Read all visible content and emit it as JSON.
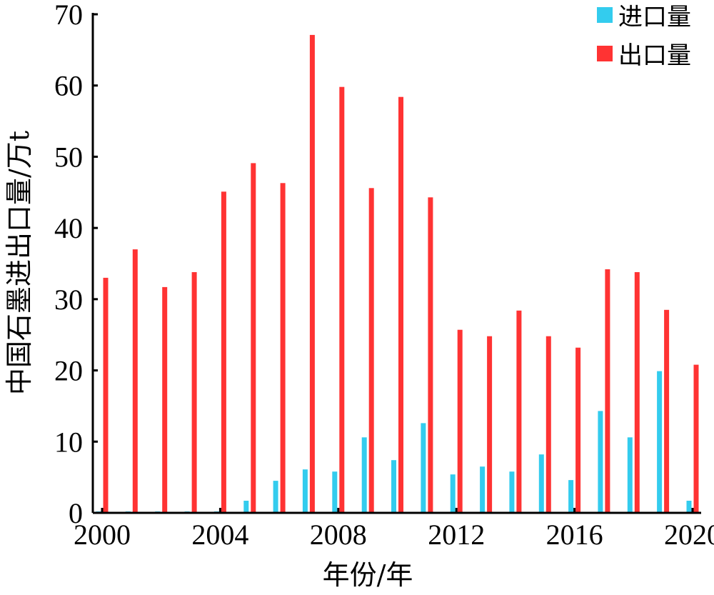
{
  "chart_data": {
    "type": "bar",
    "xlabel": "年份/年",
    "ylabel": "中国石墨进出口量/万t",
    "ylim": [
      0,
      70
    ],
    "xlim": [
      2000,
      2020
    ],
    "yticks": [
      "0",
      "10",
      "20",
      "30",
      "40",
      "50",
      "60",
      "70"
    ],
    "xticks": [
      "2000",
      "2004",
      "2008",
      "2012",
      "2016",
      "2020"
    ],
    "grid": false,
    "legend_position": "top-right",
    "categories": [
      2000,
      2001,
      2002,
      2003,
      2004,
      2005,
      2006,
      2007,
      2008,
      2009,
      2010,
      2011,
      2012,
      2013,
      2014,
      2015,
      2016,
      2017,
      2018,
      2019,
      2020
    ],
    "series": [
      {
        "name": "进口量",
        "color": "#33ccee",
        "values": [
          0.2,
          0.2,
          0.2,
          0.2,
          0.2,
          1.7,
          4.5,
          6.1,
          5.8,
          10.6,
          7.4,
          12.6,
          5.4,
          6.5,
          5.8,
          8.2,
          4.6,
          14.3,
          10.6,
          19.9,
          1.7
        ]
      },
      {
        "name": "出口量",
        "color": "#ff3333",
        "values": [
          33.0,
          37.0,
          31.7,
          33.8,
          45.1,
          49.1,
          46.3,
          67.1,
          59.8,
          45.6,
          58.4,
          44.3,
          25.7,
          24.8,
          28.4,
          24.8,
          23.2,
          34.2,
          33.8,
          28.5,
          20.8
        ]
      }
    ]
  }
}
